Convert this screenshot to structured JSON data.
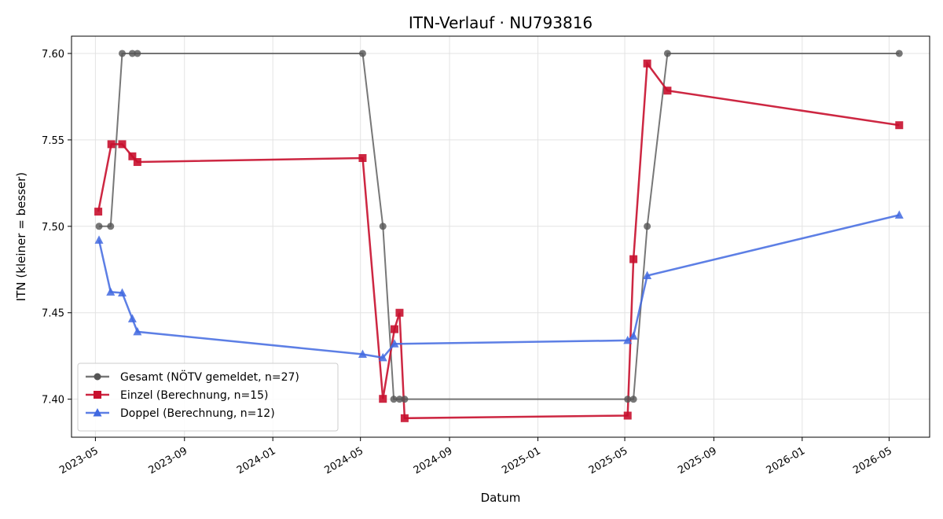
{
  "chart_data": {
    "type": "line",
    "title": "ITN-Verlauf · NU793816",
    "xlabel": "Datum",
    "ylabel": "ITN  (kleiner = besser)",
    "x_axis_type": "date",
    "xlim": [
      "2023-03-29",
      "2026-06-26"
    ],
    "ylim": [
      7.378,
      7.61
    ],
    "x_ticks": [
      "2023-05-01",
      "2023-09-01",
      "2024-01-01",
      "2024-05-01",
      "2024-09-01",
      "2025-01-01",
      "2025-05-01",
      "2025-09-01",
      "2026-01-01",
      "2026-05-01"
    ],
    "x_tick_labels": [
      "2023-05",
      "2023-09",
      "2024-01",
      "2024-05",
      "2024-09",
      "2025-01",
      "2025-05",
      "2025-09",
      "2026-01",
      "2026-05"
    ],
    "y_ticks": [
      7.4,
      7.45,
      7.5,
      7.55,
      7.6
    ],
    "y_tick_labels": [
      "7.40",
      "7.45",
      "7.50",
      "7.55",
      "7.60"
    ],
    "grid": true,
    "legend_position": "lower-left",
    "series": [
      {
        "name": "Gesamt (NÖTV gemeldet, n=27)",
        "color": "#555555",
        "marker": "circle",
        "points": [
          [
            "2023-05-06",
            7.5
          ],
          [
            "2023-05-22",
            7.5
          ],
          [
            "2023-06-07",
            7.6
          ],
          [
            "2023-06-21",
            7.6
          ],
          [
            "2023-06-28",
            7.6
          ],
          [
            "2024-05-04",
            7.6
          ],
          [
            "2024-06-01",
            7.5
          ],
          [
            "2024-06-16",
            7.4
          ],
          [
            "2024-06-24",
            7.4
          ],
          [
            "2024-07-01",
            7.4
          ],
          [
            "2025-05-05",
            7.4
          ],
          [
            "2025-05-13",
            7.4
          ],
          [
            "2025-06-01",
            7.5
          ],
          [
            "2025-06-29",
            7.6
          ],
          [
            "2026-05-15",
            7.6
          ]
        ]
      },
      {
        "name": "Einzel (Berechnung, n=15)",
        "color": "#c8102e",
        "marker": "square",
        "points": [
          [
            "2023-05-05",
            7.5085
          ],
          [
            "2023-05-23",
            7.5475
          ],
          [
            "2023-06-07",
            7.5475
          ],
          [
            "2023-06-21",
            7.5405
          ],
          [
            "2023-06-28",
            7.5372
          ],
          [
            "2024-05-04",
            7.5395
          ],
          [
            "2024-06-01",
            7.4002
          ],
          [
            "2024-06-17",
            7.4405
          ],
          [
            "2024-06-24",
            7.45
          ],
          [
            "2024-07-01",
            7.389
          ],
          [
            "2025-05-05",
            7.3905
          ],
          [
            "2025-05-13",
            7.481
          ],
          [
            "2025-06-01",
            7.5942
          ],
          [
            "2025-06-29",
            7.5785
          ],
          [
            "2026-05-15",
            7.5585
          ]
        ]
      },
      {
        "name": "Doppel (Berechnung, n=12)",
        "color": "#4169e1",
        "marker": "triangle",
        "points": [
          [
            "2023-05-06",
            7.492
          ],
          [
            "2023-05-22",
            7.462
          ],
          [
            "2023-06-07",
            7.4615
          ],
          [
            "2023-06-21",
            7.4465
          ],
          [
            "2023-06-28",
            7.439
          ],
          [
            "2024-05-04",
            7.426
          ],
          [
            "2024-06-01",
            7.424
          ],
          [
            "2024-06-17",
            7.432
          ],
          [
            "2025-05-05",
            7.434
          ],
          [
            "2025-05-13",
            7.4365
          ],
          [
            "2025-06-01",
            7.4715
          ],
          [
            "2026-05-15",
            7.5065
          ]
        ]
      }
    ]
  }
}
